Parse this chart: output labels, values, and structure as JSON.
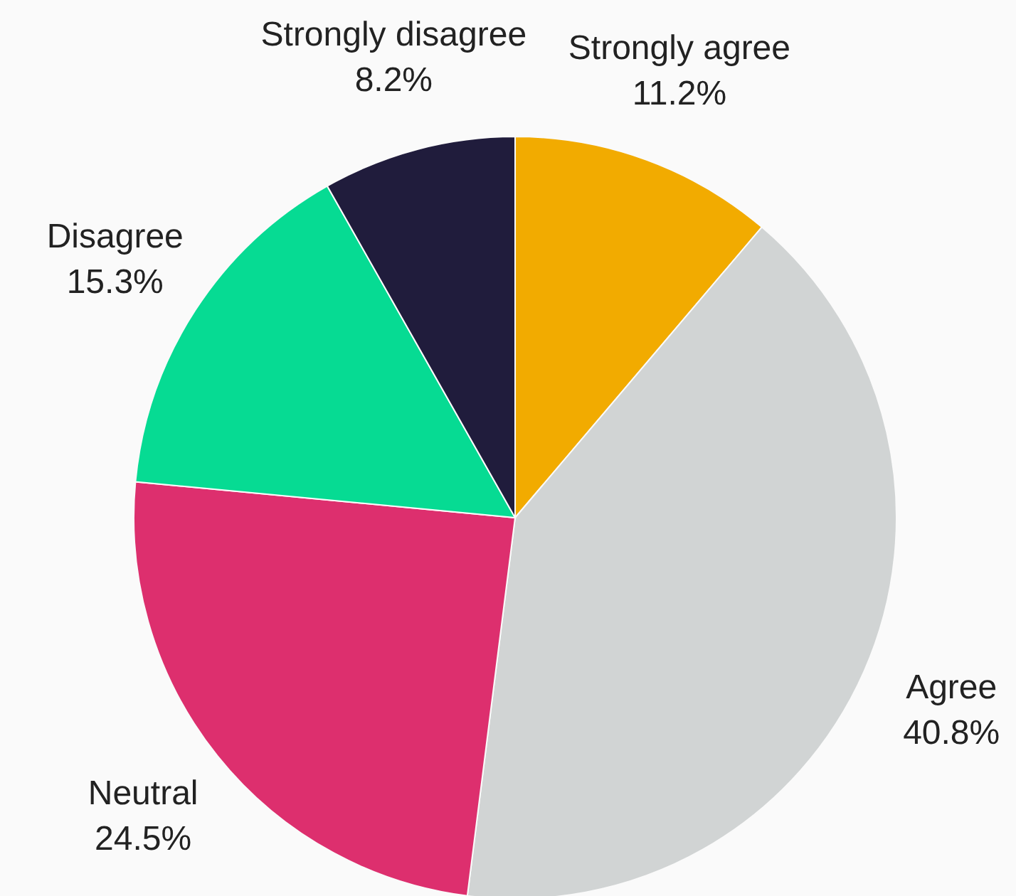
{
  "chart_data": {
    "type": "pie",
    "categories": [
      "Strongly agree",
      "Agree",
      "Neutral",
      "Disagree",
      "Strongly disagree"
    ],
    "values": [
      11.2,
      40.8,
      24.5,
      15.3,
      8.2
    ],
    "value_labels": [
      "11.2%",
      "40.8%",
      "24.5%",
      "15.3%",
      "8.2%"
    ],
    "colors": [
      "#f2ab00",
      "#d1d4d4",
      "#dd2f6e",
      "#06db93",
      "#201c3c"
    ]
  }
}
